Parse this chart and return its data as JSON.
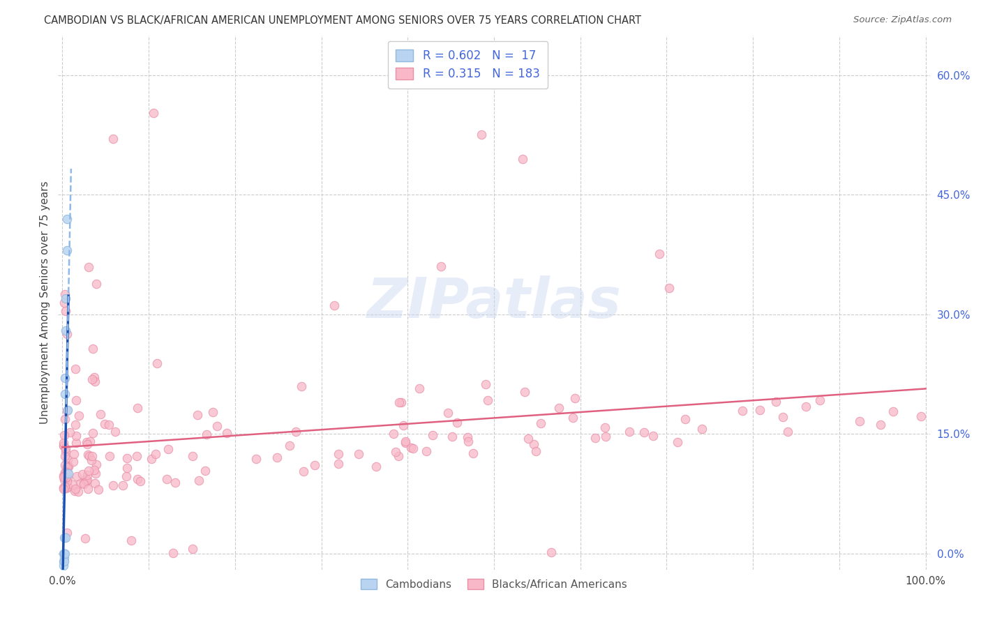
{
  "title": "CAMBODIAN VS BLACK/AFRICAN AMERICAN UNEMPLOYMENT AMONG SENIORS OVER 75 YEARS CORRELATION CHART",
  "source": "Source: ZipAtlas.com",
  "ylabel": "Unemployment Among Seniors over 75 years",
  "cambodian_R": 0.602,
  "cambodian_N": 17,
  "black_R": 0.315,
  "black_N": 183,
  "cambodian_color": "#b8d4f0",
  "cambodian_edge_color": "#90b8e0",
  "black_color": "#f8b8c8",
  "black_edge_color": "#e890a8",
  "cambodian_line_color": "#1a50b0",
  "cambodian_dash_color": "#90b8e8",
  "black_line_color": "#e06080",
  "watermark": "ZIPatlas",
  "xlim": [
    -0.005,
    1.005
  ],
  "ylim": [
    -0.02,
    0.65
  ],
  "right_yticks": [
    0.0,
    0.15,
    0.3,
    0.45,
    0.6
  ],
  "right_yticklabels": [
    "0.0%",
    "15.0%",
    "30.0%",
    "45.0%",
    "60.0%"
  ],
  "xticks": [
    0.0,
    0.1,
    0.2,
    0.3,
    0.4,
    0.5,
    0.6,
    0.7,
    0.8,
    0.9,
    1.0
  ],
  "xticklabels": [
    "0.0%",
    "",
    "",
    "",
    "",
    "",
    "",
    "",
    "",
    "",
    "100.0%"
  ],
  "cambodian_x": [
    0.001,
    0.001,
    0.001,
    0.002,
    0.002,
    0.002,
    0.002,
    0.003,
    0.003,
    0.003,
    0.004,
    0.004,
    0.004,
    0.005,
    0.005,
    0.006,
    0.007
  ],
  "cambodian_y": [
    0.0,
    -0.01,
    -0.015,
    0.0,
    -0.005,
    0.02,
    -0.01,
    0.2,
    0.22,
    0.0,
    0.28,
    0.32,
    0.02,
    0.38,
    0.42,
    0.18,
    0.1
  ]
}
